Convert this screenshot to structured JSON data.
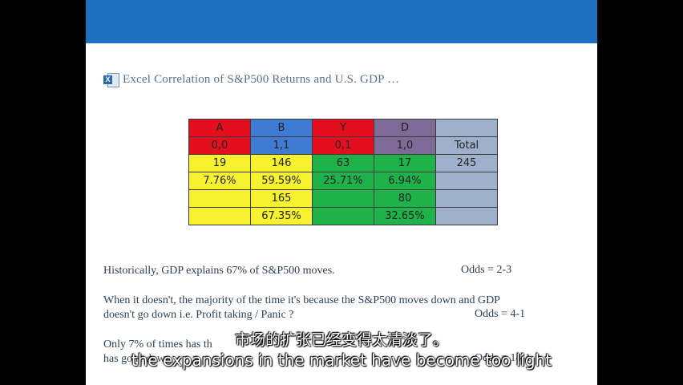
{
  "slide": {
    "title": "Excel Correlation of S&P500 Returns and U.S. GDP …",
    "icon": "excel-icon",
    "table": {
      "rows": [
        [
          {
            "t": "A",
            "c": "red"
          },
          {
            "t": "B",
            "c": "blue"
          },
          {
            "t": "Y",
            "c": "red"
          },
          {
            "t": "D",
            "c": "purple"
          },
          {
            "t": "",
            "c": "lav"
          }
        ],
        [
          {
            "t": "0,0",
            "c": "red"
          },
          {
            "t": "1,1",
            "c": "blue"
          },
          {
            "t": "0,1",
            "c": "red"
          },
          {
            "t": "1,0",
            "c": "purple"
          },
          {
            "t": "Total",
            "c": "lav"
          }
        ],
        [
          {
            "t": "19",
            "c": "yellow"
          },
          {
            "t": "146",
            "c": "yellow"
          },
          {
            "t": "63",
            "c": "green"
          },
          {
            "t": "17",
            "c": "green"
          },
          {
            "t": "245",
            "c": "lav"
          }
        ],
        [
          {
            "t": "7.76%",
            "c": "yellow"
          },
          {
            "t": "59.59%",
            "c": "yellow"
          },
          {
            "t": "25.71%",
            "c": "green"
          },
          {
            "t": "6.94%",
            "c": "green"
          },
          {
            "t": "",
            "c": "lav"
          }
        ],
        [
          {
            "t": "",
            "c": "yellow"
          },
          {
            "t": "165",
            "c": "yellow"
          },
          {
            "t": "",
            "c": "green"
          },
          {
            "t": "80",
            "c": "green"
          },
          {
            "t": "",
            "c": "lav"
          }
        ],
        [
          {
            "t": "",
            "c": "yellow"
          },
          {
            "t": "67.35%",
            "c": "yellow"
          },
          {
            "t": "",
            "c": "green"
          },
          {
            "t": "32.65%",
            "c": "green"
          },
          {
            "t": "",
            "c": "lav"
          }
        ]
      ]
    },
    "p1": "Historically, GDP explains 67% of S&P500 moves.",
    "odds1": "Odds = 2-3",
    "p2_line1": "When it doesn't, the majority of the time it's because the S&P500 moves down and GDP",
    "p2_line2": "doesn't go down i.e. Profit taking / Panic ?",
    "odds2": "Odds = 4-1",
    "p3_line1": "Only 7% of times has th",
    "p3_line2": "has gone down",
    "odds3": "Odds = 14-1"
  },
  "subtitles": {
    "chinese": "市场的扩张已经变得太清淡了。",
    "english": "the expansions in the market have become too light"
  }
}
